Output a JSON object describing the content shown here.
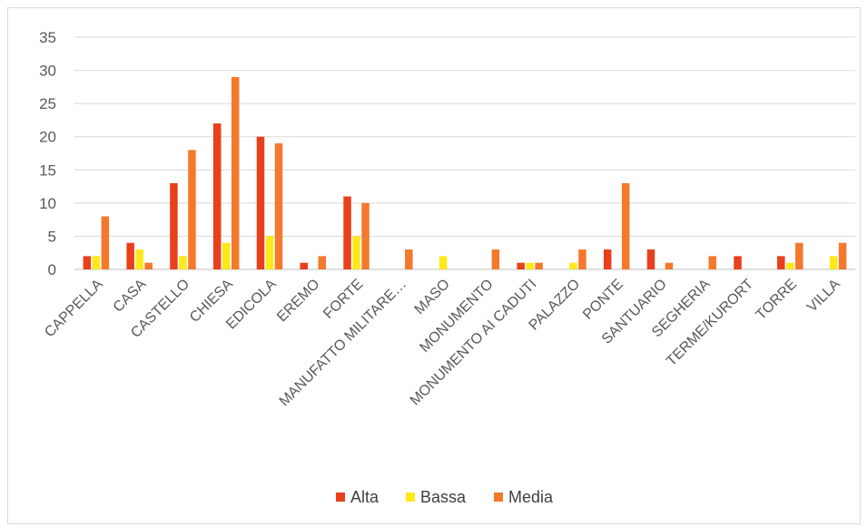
{
  "chart_data": {
    "type": "bar",
    "title": "",
    "xlabel": "",
    "ylabel": "",
    "ylim": [
      0,
      35
    ],
    "yticks": [
      0,
      5,
      10,
      15,
      20,
      25,
      30,
      35
    ],
    "grid": true,
    "legend_position": "bottom",
    "categories": [
      "CAPPELLA",
      "CASA",
      "CASTELLO",
      "CHIESA",
      "EDICOLA",
      "EREMO",
      "FORTE",
      "MANUFATTO MILITARE…",
      "MASO",
      "MONUMENTO",
      "MONUMENTO AI CADUTI",
      "PALAZZO",
      "PONTE",
      "SANTUARIO",
      "SEGHERIA",
      "TERME/KURORT",
      "TORRE",
      "VILLA"
    ],
    "series": [
      {
        "name": "Alta",
        "color": "#e8401c",
        "values": [
          2,
          4,
          13,
          22,
          20,
          1,
          11,
          0,
          0,
          0,
          1,
          0,
          3,
          3,
          0,
          2,
          2,
          0
        ]
      },
      {
        "name": "Bassa",
        "color": "#ffe81a",
        "values": [
          2,
          3,
          2,
          4,
          5,
          0,
          5,
          0,
          2,
          0,
          1,
          1,
          0,
          0,
          0,
          0,
          1,
          2
        ]
      },
      {
        "name": "Media",
        "color": "#f4792c",
        "values": [
          8,
          1,
          18,
          29,
          19,
          2,
          10,
          3,
          0,
          3,
          1,
          3,
          13,
          1,
          2,
          0,
          4,
          4
        ]
      }
    ]
  }
}
